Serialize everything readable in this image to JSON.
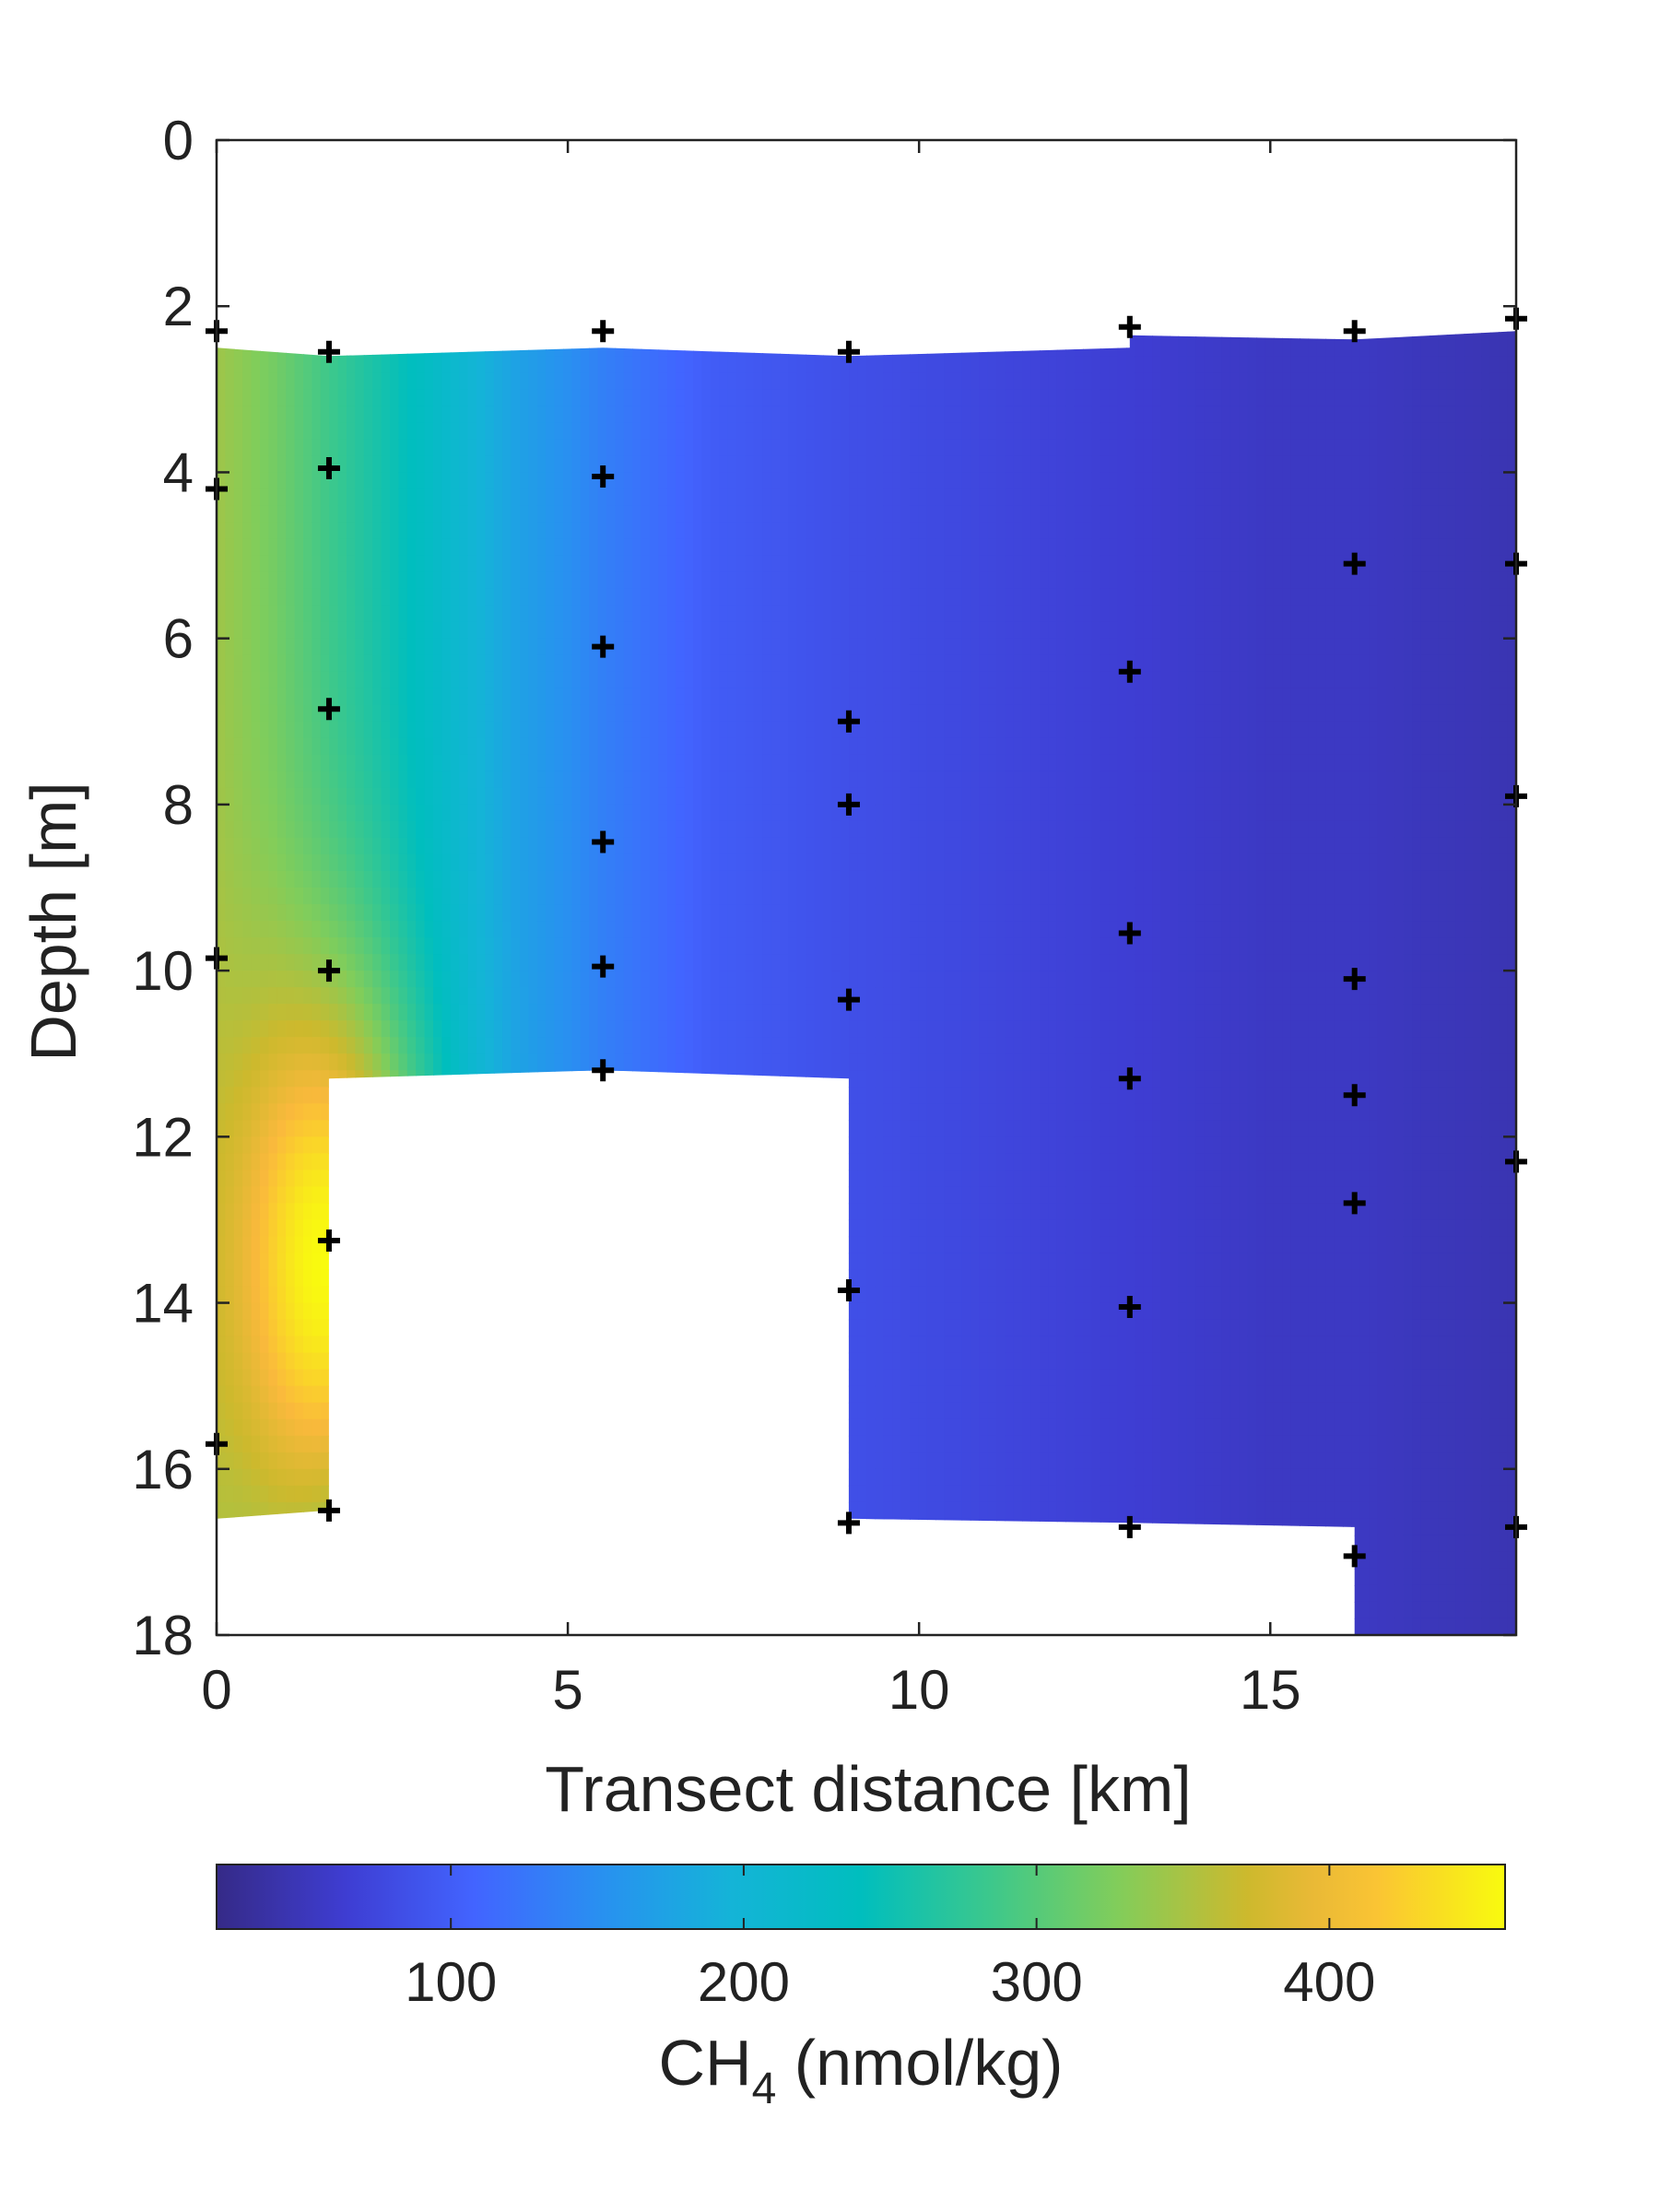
{
  "chart_data": {
    "type": "heatmap",
    "title": "",
    "xlabel": "Transect distance [km]",
    "ylabel": "Depth [m]",
    "xlim": [
      0,
      18.5
    ],
    "ylim": [
      0,
      18
    ],
    "y_reversed": true,
    "grid": false,
    "xticks": [
      0,
      5,
      10,
      15
    ],
    "yticks": [
      0,
      2,
      4,
      6,
      8,
      10,
      12,
      14,
      16,
      18
    ],
    "colorbar": {
      "label": "CH",
      "label_subscript": "4",
      "label_suffix": " (nmol/kg)",
      "range": [
        20,
        460
      ],
      "ticks": [
        100,
        200,
        300,
        400
      ],
      "colormap": "parula",
      "orientation": "horizontal",
      "placement": "below"
    },
    "stations": [
      {
        "x": 0.0,
        "depths": [
          2.3,
          4.2,
          9.85,
          15.7
        ]
      },
      {
        "x": 1.6,
        "depths": [
          2.55,
          3.95,
          6.85,
          10.0,
          13.25,
          16.5
        ]
      },
      {
        "x": 5.5,
        "depths": [
          2.3,
          4.05,
          6.1,
          8.45,
          9.95,
          11.2
        ]
      },
      {
        "x": 9.0,
        "depths": [
          2.55,
          7.0,
          8.0,
          10.35,
          13.85,
          16.65
        ]
      },
      {
        "x": 13.0,
        "depths": [
          2.25,
          6.4,
          9.55,
          11.3,
          14.05,
          16.7
        ]
      },
      {
        "x": 16.2,
        "depths": [
          2.3,
          5.1,
          10.1,
          11.5,
          12.8,
          17.05
        ]
      },
      {
        "x": 18.5,
        "depths": [
          2.15,
          5.1,
          7.9,
          12.3,
          16.7
        ]
      }
    ],
    "section_outline": [
      [
        0.0,
        2.5
      ],
      [
        1.6,
        2.6
      ],
      [
        5.5,
        2.5
      ],
      [
        9.0,
        2.6
      ],
      [
        13.0,
        2.5
      ],
      [
        13.0,
        2.35
      ],
      [
        16.2,
        2.4
      ],
      [
        18.5,
        2.3
      ],
      [
        18.5,
        18.0
      ],
      [
        16.2,
        18.0
      ],
      [
        16.2,
        16.7
      ],
      [
        13.0,
        16.65
      ],
      [
        9.0,
        16.6
      ],
      [
        9.0,
        11.3
      ],
      [
        5.5,
        11.2
      ],
      [
        1.6,
        11.3
      ],
      [
        1.6,
        16.5
      ],
      [
        0.0,
        16.6
      ]
    ],
    "ch4_field": {
      "description_units": "nmol/kg",
      "distance_profile": [
        [
          0,
          345
        ],
        [
          0.8,
          320
        ],
        [
          1.6,
          285
        ],
        [
          3.0,
          230
        ],
        [
          4.2,
          175
        ],
        [
          5.5,
          135
        ],
        [
          7,
          100
        ],
        [
          9,
          85
        ],
        [
          11,
          75
        ],
        [
          13,
          65
        ],
        [
          15,
          55
        ],
        [
          16.2,
          55
        ],
        [
          18.5,
          45
        ]
      ],
      "near_bottom_hotspot": {
        "x": 1.5,
        "depth": 13.5,
        "peak": 460
      }
    }
  }
}
